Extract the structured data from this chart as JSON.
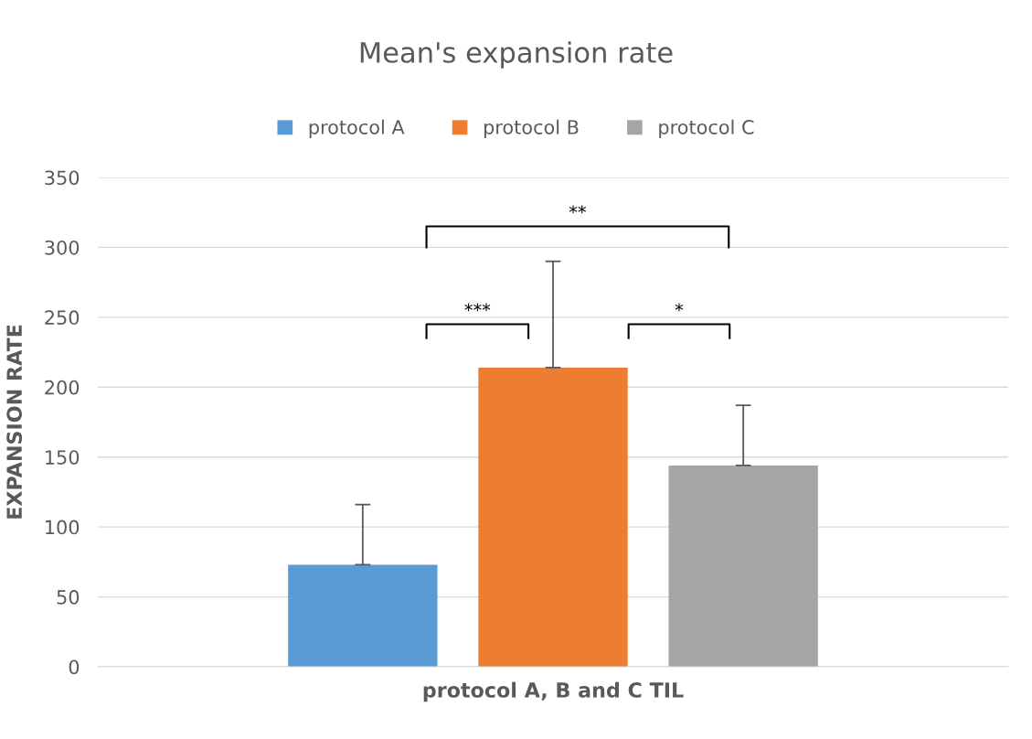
{
  "chart_data": {
    "type": "bar",
    "title": "Mean's expansion rate",
    "ylabel": "EXPANSION RATE",
    "categories": [
      "protocol A, B and C TIL"
    ],
    "series": [
      {
        "name": "protocol A",
        "color": "#5b9bd5",
        "values": [
          73
        ],
        "errors": [
          [
            73,
            116
          ]
        ]
      },
      {
        "name": "protocol B",
        "color": "#ed7d31",
        "values": [
          214
        ],
        "errors": [
          [
            214,
            290
          ]
        ]
      },
      {
        "name": "protocol C",
        "color": "#a5a5a5",
        "values": [
          144
        ],
        "errors": [
          [
            144,
            187
          ]
        ]
      }
    ],
    "ylim": [
      0,
      350
    ],
    "yticks": [
      0,
      50,
      100,
      150,
      200,
      250,
      300,
      350
    ],
    "grid": "y",
    "legend": "top",
    "annotations": [
      "**",
      "***",
      "*"
    ]
  }
}
